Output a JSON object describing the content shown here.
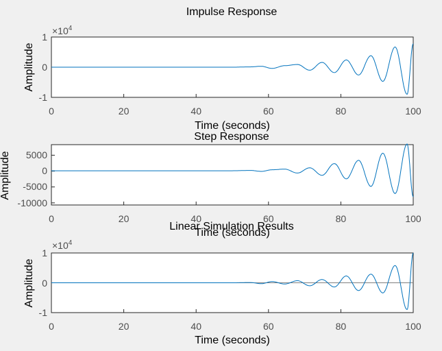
{
  "chart_data": [
    {
      "type": "line",
      "title": "Impulse Response",
      "xlabel": "Time (seconds)",
      "ylabel": "Amplitude",
      "xlim": [
        0,
        100
      ],
      "ylim": [
        -10000,
        10000
      ],
      "xticks": [
        "0",
        "20",
        "40",
        "60",
        "80",
        "100"
      ],
      "yticks": [
        "-1",
        "0",
        "1"
      ],
      "y_multiplier": "×10",
      "y_multiplier_exponent": "4",
      "grid": false,
      "series_color": "#0072bd",
      "series": [
        {
          "name": "",
          "x": [
            0,
            10,
            20,
            30,
            40,
            50,
            55,
            58,
            61,
            64.5,
            68,
            71.4,
            74.8,
            78.2,
            81.5,
            84.9,
            88.3,
            91.6,
            95,
            98.3,
            100
          ],
          "y": [
            0,
            0,
            0,
            0,
            0,
            0,
            100,
            300,
            -400,
            500,
            900,
            -1000,
            1600,
            -1800,
            2400,
            -2600,
            3800,
            -4700,
            6700,
            -9000,
            7800
          ]
        }
      ]
    },
    {
      "type": "line",
      "title": "Step Response",
      "xlabel": "Time (seconds)",
      "ylabel": "Amplitude",
      "xlim": [
        0,
        100
      ],
      "ylim": [
        -10500,
        8000
      ],
      "xticks": [
        "0",
        "20",
        "40",
        "60",
        "80",
        "100"
      ],
      "yticks": [
        "-10000",
        "-5000",
        "0",
        "5000"
      ],
      "grid": false,
      "series_color": "#0072bd",
      "series": [
        {
          "name": "",
          "x": [
            0,
            10,
            20,
            30,
            40,
            50,
            55,
            58,
            61,
            64.5,
            68,
            71.4,
            74.8,
            78.2,
            81.5,
            84.9,
            88.3,
            91.6,
            95,
            98.3,
            100
          ],
          "y": [
            0,
            0,
            0,
            0,
            0,
            0,
            100,
            -200,
            300,
            500,
            -700,
            900,
            -1400,
            2200,
            -2500,
            3200,
            -4800,
            5400,
            -7000,
            8200,
            -8000
          ]
        }
      ]
    },
    {
      "type": "line",
      "title": "Linear Simulation Results",
      "xlabel": "Time (seconds)",
      "ylabel": "Amplitude",
      "xlim": [
        0,
        100
      ],
      "ylim": [
        -10000,
        10000
      ],
      "xticks": [
        "0",
        "20",
        "40",
        "60",
        "80",
        "100"
      ],
      "yticks": [
        "-1",
        "0",
        "1"
      ],
      "y_multiplier": "×10",
      "y_multiplier_exponent": "4",
      "grid": false,
      "series_color": "#0072bd",
      "series": [
        {
          "name": "",
          "x": [
            0,
            10,
            20,
            30,
            40,
            50,
            55,
            58,
            61,
            64.5,
            68,
            71.4,
            74.8,
            78.2,
            81.5,
            84.9,
            88.3,
            91.6,
            95,
            98.3,
            100
          ],
          "y": [
            0,
            0,
            0,
            0,
            0,
            0,
            100,
            -300,
            400,
            -400,
            700,
            -1000,
            1100,
            -1400,
            2300,
            -2600,
            2900,
            -3400,
            5800,
            -9000,
            10000
          ]
        },
        {
          "name": "",
          "color": "#808080",
          "x": [
            0,
            100
          ],
          "y": [
            0,
            0
          ]
        }
      ]
    }
  ]
}
